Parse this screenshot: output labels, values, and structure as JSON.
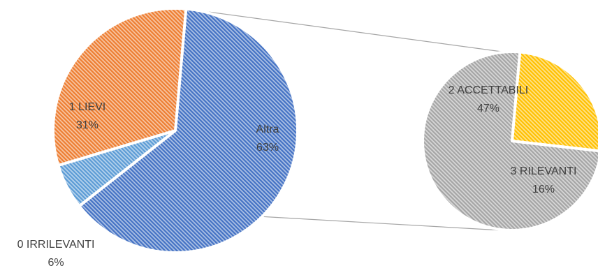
{
  "chart_data": {
    "type": "pie",
    "variant": "pie-of-pie",
    "title": "",
    "primary": {
      "slices": [
        {
          "key": "altra",
          "label": "Altra",
          "percent_label": "63%",
          "value": 63,
          "color": "#4472c4"
        },
        {
          "key": "irrilevanti",
          "label": "0 IRRILEVANTI",
          "percent_label": "6%",
          "value": 6,
          "color": "#5b9bd5"
        },
        {
          "key": "lievi",
          "label": "1 LIEVI",
          "percent_label": "31%",
          "value": 31,
          "color": "#ed7d31"
        }
      ]
    },
    "secondary": {
      "parent_key": "altra",
      "slices": [
        {
          "key": "accettabili",
          "label": "2 ACCETTABILI",
          "percent_label": "47%",
          "value": 47,
          "color": "#a5a5a5"
        },
        {
          "key": "rilevanti",
          "label": "3 RILEVANTI",
          "percent_label": "16%",
          "value": 16,
          "color": "#ffc000"
        }
      ]
    },
    "fill_pattern": "diagonal-hatch",
    "legend": "none",
    "data_labels": "category-and-percent"
  }
}
